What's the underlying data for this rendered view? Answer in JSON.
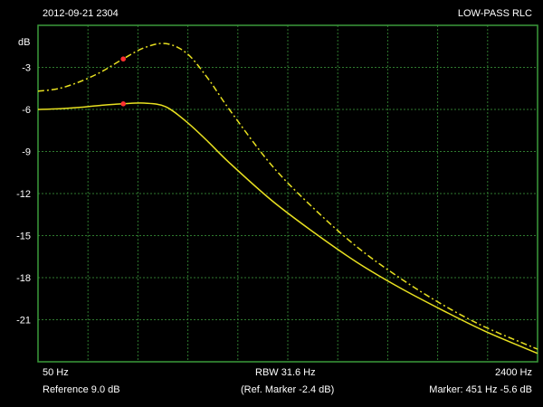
{
  "header": {
    "timestamp": "2012-09-21 2304",
    "title": "LOW-PASS RLC"
  },
  "footer": {
    "start_freq": "50 Hz",
    "rbw": "RBW  31.6 Hz",
    "stop_freq": "2400 Hz",
    "reference": "Reference  9.0 dB",
    "ref_marker": "(Ref. Marker -2.4 dB)",
    "marker": "Marker:  451 Hz   -5.6 dB"
  },
  "colors": {
    "background": "#000000",
    "frame": "#3a9a3a",
    "grid": "#2f7a2f",
    "trace": "#e8e020",
    "marker": "#ff3030"
  },
  "chart_data": {
    "type": "line",
    "ylabel": "dB",
    "yticks": [
      "-3",
      "-6",
      "-9",
      "-12",
      "-15",
      "-18",
      "-21"
    ],
    "ylim": [
      -24,
      0
    ],
    "xlim": [
      50,
      2400
    ],
    "x_divisions": 10,
    "grid": true,
    "series": [
      {
        "style": "solid",
        "x": [
          50,
          150,
          250,
          350,
          450,
          550,
          650,
          750,
          850,
          950,
          1150,
          1350,
          1550,
          1750,
          1950,
          2150,
          2400
        ],
        "y": [
          -6.0,
          -5.95,
          -5.85,
          -5.7,
          -5.6,
          -5.55,
          -5.8,
          -6.9,
          -8.3,
          -9.8,
          -12.5,
          -14.8,
          -16.9,
          -18.7,
          -20.3,
          -21.8,
          -23.4
        ]
      },
      {
        "style": "dashdot",
        "x": [
          50,
          150,
          250,
          350,
          450,
          550,
          650,
          750,
          850,
          950,
          1150,
          1350,
          1550,
          1750,
          1950,
          2150,
          2400
        ],
        "y": [
          -4.7,
          -4.5,
          -4.0,
          -3.3,
          -2.4,
          -1.6,
          -1.3,
          -2.0,
          -3.8,
          -6.0,
          -10.0,
          -13.1,
          -15.8,
          -18.0,
          -19.9,
          -21.5,
          -23.1
        ]
      }
    ],
    "markers": [
      {
        "x": 451,
        "y": -5.6
      },
      {
        "x": 451,
        "y": -2.4
      }
    ]
  }
}
